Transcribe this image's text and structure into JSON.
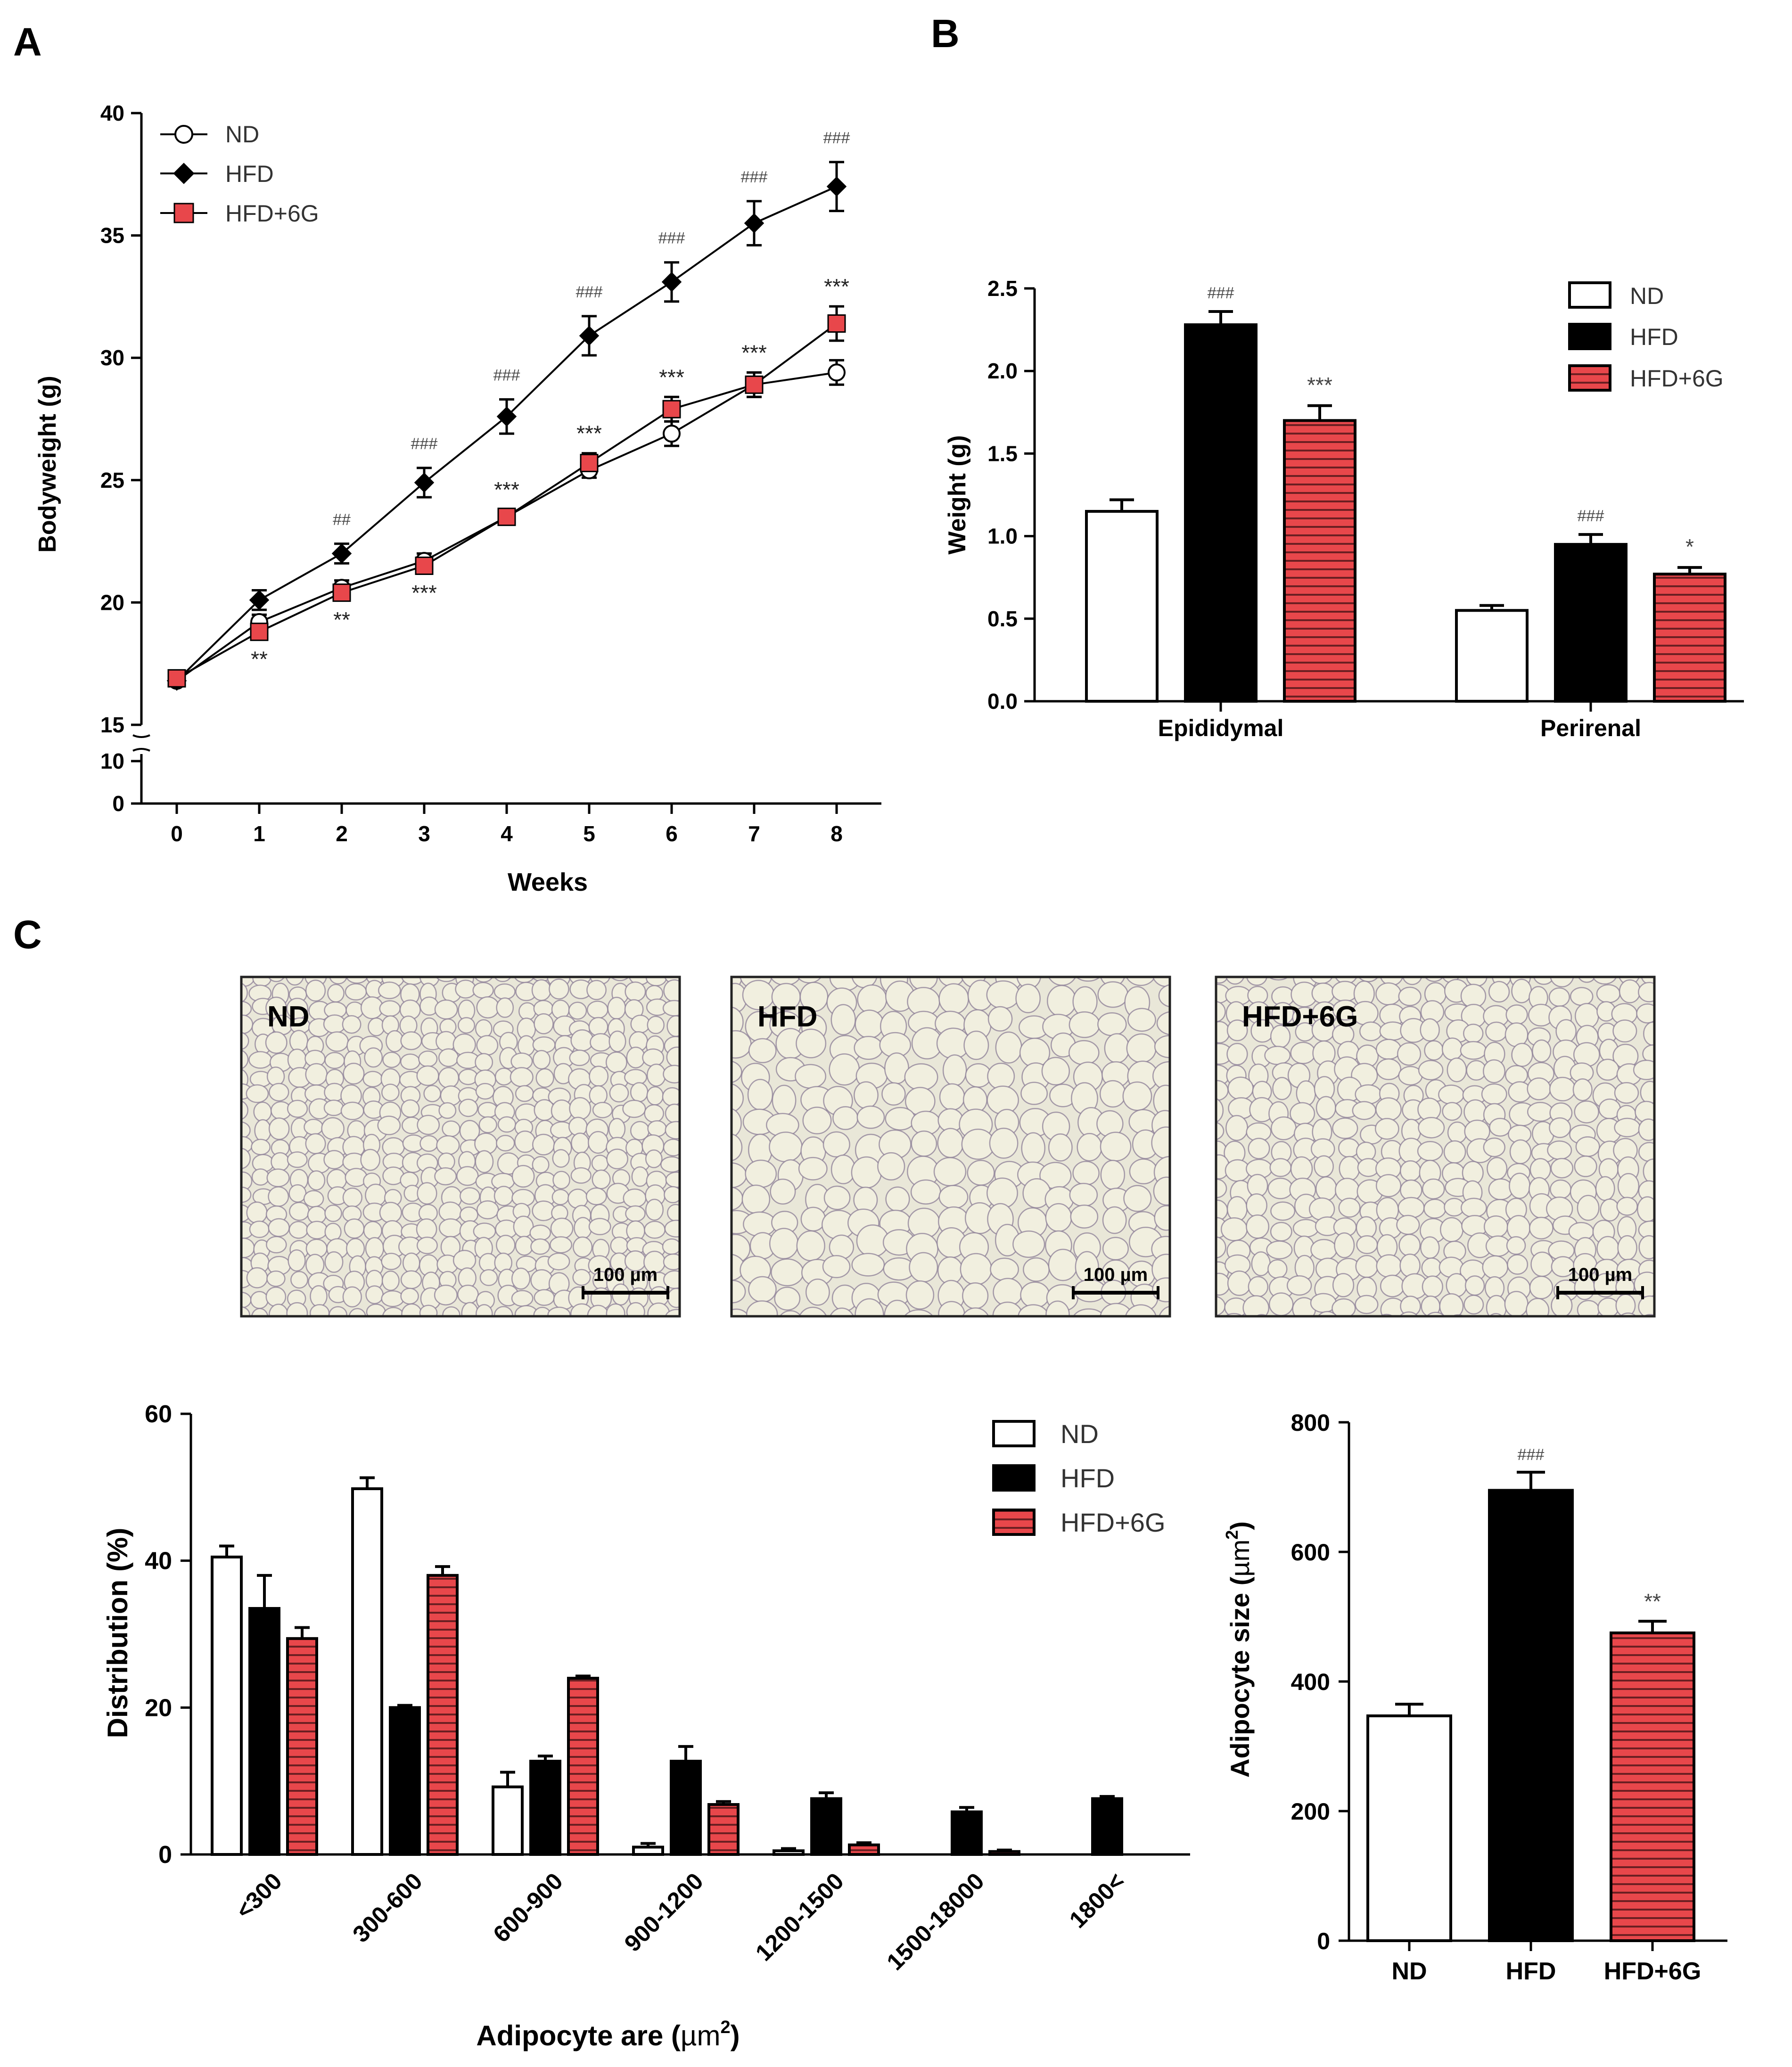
{
  "colors": {
    "nd": "#ffffff",
    "hfd": "#000000",
    "hfd6g": "#e8474b",
    "hfd6g_stripe": "#6b1f22",
    "photo_bg": "#e9e7d8",
    "photo_cell_line": "#8b7e95",
    "axis": "#000000"
  },
  "panels": {
    "a": "A",
    "b": "B",
    "c": "C"
  },
  "legend": {
    "nd": "ND",
    "hfd": "HFD",
    "hfd6g": "HFD+6G"
  },
  "chart_data": [
    {
      "id": "A",
      "type": "line",
      "title": "",
      "xlabel": "Weeks",
      "ylabel": "Bodyweight (g)",
      "x": [
        0,
        1,
        2,
        3,
        4,
        5,
        6,
        7,
        8
      ],
      "ylim": [
        0,
        40
      ],
      "axis_break": [
        10,
        15
      ],
      "yticks": [
        0,
        10,
        15,
        20,
        25,
        30,
        35,
        40
      ],
      "series": [
        {
          "name": "ND",
          "values": [
            16.8,
            19.2,
            20.6,
            21.7,
            23.5,
            25.4,
            26.9,
            28.9,
            29.4
          ],
          "errors": [
            0.2,
            0.3,
            0.3,
            0.3,
            0.3,
            0.3,
            0.5,
            0.5,
            0.5
          ]
        },
        {
          "name": "HFD",
          "values": [
            16.8,
            20.1,
            22.0,
            24.9,
            27.6,
            30.9,
            33.1,
            35.5,
            37.0
          ],
          "errors": [
            0.2,
            0.4,
            0.4,
            0.6,
            0.7,
            0.8,
            0.8,
            0.9,
            1.0
          ]
        },
        {
          "name": "HFD+6G",
          "values": [
            16.9,
            18.8,
            20.4,
            21.5,
            23.5,
            25.7,
            27.9,
            28.9,
            31.4
          ],
          "errors": [
            0.2,
            0.3,
            0.3,
            0.3,
            0.3,
            0.4,
            0.5,
            0.5,
            0.7
          ]
        }
      ],
      "annotations_hfd": [
        "",
        "",
        "##",
        "###",
        "###",
        "###",
        "###",
        "###",
        "###"
      ],
      "annotations_hfd6g_above": [
        "",
        "",
        "",
        "",
        "***",
        "***",
        "***",
        "***",
        "***"
      ],
      "annotations_hfd6g_below": [
        "",
        "**",
        "**",
        "***",
        "",
        "",
        "",
        "",
        ""
      ]
    },
    {
      "id": "B",
      "type": "bar",
      "title": "",
      "xlabel": "",
      "ylabel": "Weight (g)",
      "categories": [
        "Epididymal",
        "Perirenal"
      ],
      "ylim": [
        0,
        2.5
      ],
      "yticks": [
        "0.0",
        "0.5",
        "1.0",
        "1.5",
        "2.0",
        "2.5"
      ],
      "series": [
        {
          "name": "ND",
          "values": [
            1.15,
            0.55
          ],
          "errors": [
            0.07,
            0.03
          ],
          "labels": [
            "",
            ""
          ]
        },
        {
          "name": "HFD",
          "values": [
            2.28,
            0.95
          ],
          "errors": [
            0.08,
            0.06
          ],
          "labels": [
            "###",
            "###"
          ]
        },
        {
          "name": "HFD+6G",
          "values": [
            1.7,
            0.77
          ],
          "errors": [
            0.09,
            0.04
          ],
          "labels": [
            "***",
            "*"
          ]
        }
      ]
    },
    {
      "id": "C-distribution",
      "type": "bar",
      "title": "",
      "xlabel": "Adipocyte are (µm²)",
      "xlabel_prefix": "Adipocyte are (",
      "xlabel_unit": "µm",
      "xlabel_sup": "2",
      "xlabel_suffix": ")",
      "ylabel": "Distribution (%)",
      "categories": [
        "<300",
        "300-600",
        "600-900",
        "900-1200",
        "1200-1500",
        "1500-18000",
        "1800<"
      ],
      "ylim": [
        0,
        60
      ],
      "yticks": [
        0,
        20,
        40,
        60
      ],
      "series": [
        {
          "name": "ND",
          "values": [
            40.5,
            49.8,
            9.2,
            1.0,
            0.5,
            0,
            0
          ],
          "errors": [
            1.5,
            1.5,
            2.0,
            0.5,
            0.3,
            0,
            0
          ]
        },
        {
          "name": "HFD",
          "values": [
            33.5,
            20.0,
            12.7,
            12.7,
            7.6,
            5.8,
            7.6
          ],
          "errors": [
            4.5,
            0.3,
            0.7,
            2.0,
            0.8,
            0.6,
            0.3
          ]
        },
        {
          "name": "HFD+6G",
          "values": [
            29.4,
            38.0,
            24.0,
            6.8,
            1.3,
            0.4,
            0
          ],
          "errors": [
            1.5,
            1.2,
            0.3,
            0.4,
            0.3,
            0.2,
            0
          ]
        }
      ]
    },
    {
      "id": "C-size",
      "type": "bar",
      "title": "",
      "xlabel": "",
      "ylabel": "Adipocyte size (µm²)",
      "ylabel_prefix": "Adipocyte size (",
      "ylabel_unit": "µm",
      "ylabel_sup": "2",
      "ylabel_suffix": ")",
      "categories": [
        "ND",
        "HFD",
        "HFD+6G"
      ],
      "ylim": [
        0,
        800
      ],
      "yticks": [
        0,
        200,
        400,
        600,
        800
      ],
      "values": [
        347,
        695,
        475
      ],
      "errors": [
        18,
        28,
        18
      ],
      "labels": [
        "",
        "###",
        "**"
      ]
    }
  ],
  "micrographs": [
    {
      "label": "ND",
      "scale": "100 µm"
    },
    {
      "label": "HFD",
      "scale": "100 µm"
    },
    {
      "label": "HFD+6G",
      "scale": "100 µm"
    }
  ]
}
